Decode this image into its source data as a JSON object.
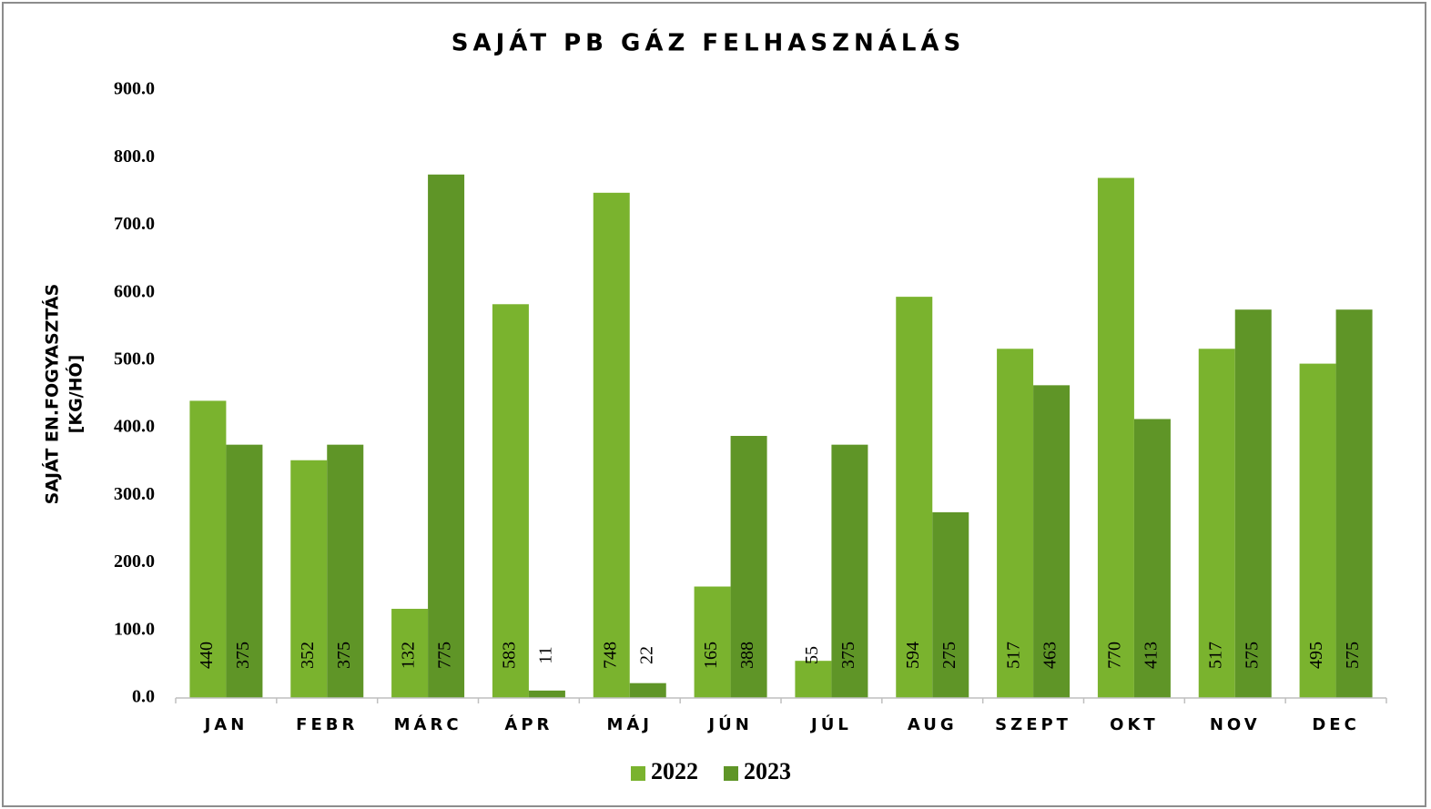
{
  "chart_data": {
    "type": "bar",
    "title": "SAJÁT PB GÁZ FELHASZNÁLÁS",
    "ylabel": [
      "SAJÁT EN.FOGYASZTÁS",
      "[KG/HÓ]"
    ],
    "categories": [
      "JAN",
      "FEBR",
      "MÁRC",
      "ÁPR",
      "MÁJ",
      "JÚN",
      "JÚL",
      "AUG",
      "SZEPT",
      "OKT",
      "NOV",
      "DEC"
    ],
    "series": [
      {
        "name": "2022",
        "color": "#7ab32e",
        "values": [
          440,
          352,
          132,
          583,
          748,
          165,
          55,
          594,
          517,
          770,
          517,
          495
        ]
      },
      {
        "name": "2023",
        "color": "#5f9527",
        "values": [
          375,
          375,
          775,
          11,
          22,
          388,
          375,
          275,
          463,
          413,
          575,
          575
        ]
      }
    ],
    "ylim": [
      0,
      900
    ],
    "yticks": [
      {
        "value": 0,
        "label": "0.0"
      },
      {
        "value": 100,
        "label": "100.0"
      },
      {
        "value": 200,
        "label": "200.0"
      },
      {
        "value": 300,
        "label": "300.0"
      },
      {
        "value": 400,
        "label": "400.0"
      },
      {
        "value": 500,
        "label": "500.0"
      },
      {
        "value": 600,
        "label": "600.0"
      },
      {
        "value": 700,
        "label": "700.0"
      },
      {
        "value": 800,
        "label": "800.0"
      },
      {
        "value": 900,
        "label": "900.0"
      }
    ],
    "grid": false,
    "legend": "bottom"
  }
}
